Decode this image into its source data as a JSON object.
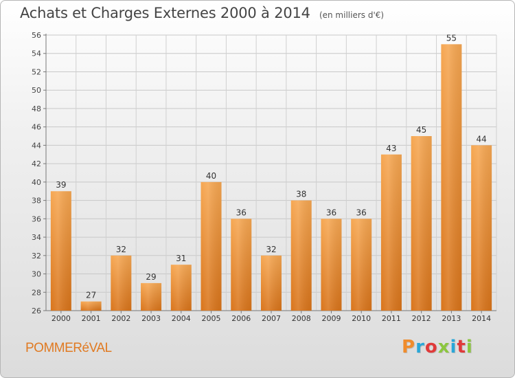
{
  "chart_data": {
    "type": "bar",
    "title": "Achats et Charges Externes 2000 à 2014",
    "subtitle": "(en milliers d'€)",
    "categories": [
      "2000",
      "2001",
      "2002",
      "2003",
      "2004",
      "2005",
      "2006",
      "2007",
      "2008",
      "2009",
      "2010",
      "2011",
      "2012",
      "2013",
      "2014"
    ],
    "values": [
      39,
      27,
      32,
      29,
      31,
      40,
      36,
      32,
      38,
      36,
      36,
      43,
      45,
      55,
      44
    ],
    "ylim": [
      26,
      56
    ],
    "yticks": [
      26,
      28,
      30,
      32,
      34,
      36,
      38,
      40,
      42,
      44,
      46,
      48,
      50,
      52,
      54,
      56
    ],
    "grid": true,
    "bar_color": "#f08c2c"
  },
  "footer": {
    "location": "POMMERéVAL",
    "brand": "Proxiti",
    "brand_letter_colors": [
      "#f08c2c",
      "#2aa7d8",
      "#e03a3a",
      "#8cc63f",
      "#2aa7d8",
      "#e03a3a",
      "#8cc63f"
    ]
  }
}
